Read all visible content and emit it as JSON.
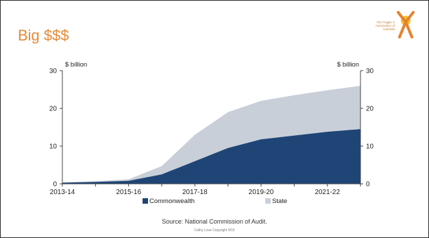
{
  "slide": {
    "title": "Big $$$",
    "logo_text": "The Fragile X Association of Australia",
    "source": "Source: National Commission of Audit.",
    "copyright": "Cathy Love Copyright 9/15"
  },
  "colors": {
    "commonwealth": "#1f4577",
    "state": "#c9cfd9",
    "title": "#e58a35"
  },
  "chart_data": {
    "type": "area",
    "stacked": true,
    "x": [
      "2013-14",
      "2014-15",
      "2015-16",
      "2016-17",
      "2017-18",
      "2018-19",
      "2019-20",
      "2020-21",
      "2021-22",
      "2022-23"
    ],
    "xticks": [
      "2013-14",
      "2015-16",
      "2017-18",
      "2019-20",
      "2021-22"
    ],
    "series": [
      {
        "name": "Commonwealth",
        "values": [
          0.3,
          0.5,
          0.8,
          2.5,
          6.0,
          9.5,
          11.8,
          12.8,
          13.8,
          14.5
        ]
      },
      {
        "name": "State",
        "values": [
          0.1,
          0.2,
          0.4,
          2.2,
          7.0,
          9.5,
          10.2,
          10.7,
          11.0,
          11.5
        ]
      }
    ],
    "ylabel_left": "$ billion",
    "ylabel_right": "$ billion",
    "ylim": [
      0,
      30
    ],
    "yticks": [
      0,
      10,
      20,
      30
    ],
    "legend_position": "bottom",
    "grid": false
  }
}
